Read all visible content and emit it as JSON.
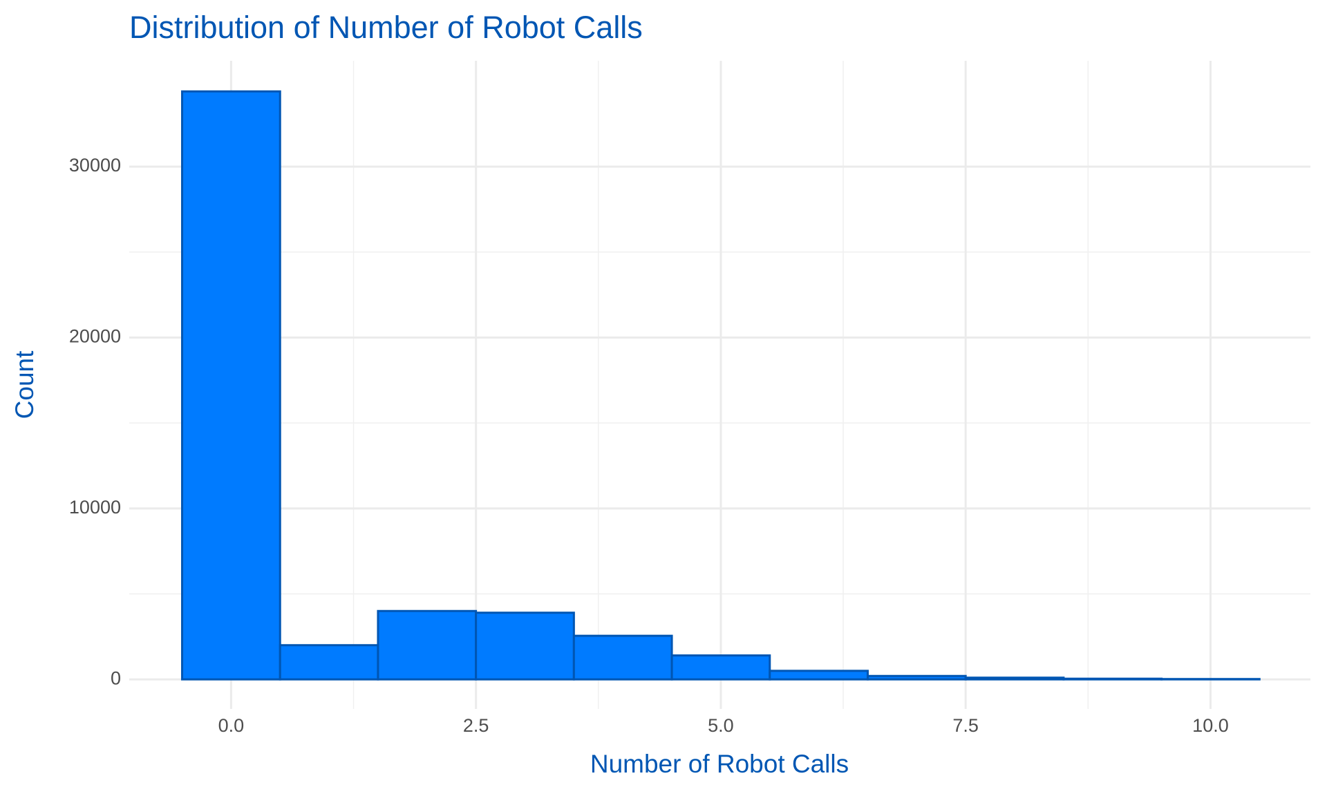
{
  "chart_data": {
    "type": "histogram",
    "title": "Distribution of Number of Robot Calls",
    "x_label": "Number of Robot Calls",
    "y_label": "Count",
    "bins": [
      -0.5,
      0.5,
      1.5,
      2.5,
      3.5,
      4.5,
      5.5,
      6.5,
      7.5,
      8.5,
      9.5,
      10.5
    ],
    "values": [
      34400,
      2000,
      4000,
      3900,
      2550,
      1400,
      500,
      200,
      100,
      40,
      20
    ],
    "color": "#007bff",
    "edge_color": "#0056b3",
    "xlim": [
      -1.04,
      11.02
    ],
    "xticks": [
      {
        "value": 0,
        "label": "0.0"
      },
      2.5,
      {
        "value": 5,
        "label": "5.0"
      },
      7.5,
      {
        "value": 10,
        "label": "10.0"
      }
    ],
    "ylim": [
      -1730,
      36190
    ],
    "yticks": [
      0,
      10000,
      20000,
      30000
    ],
    "grid": true
  }
}
